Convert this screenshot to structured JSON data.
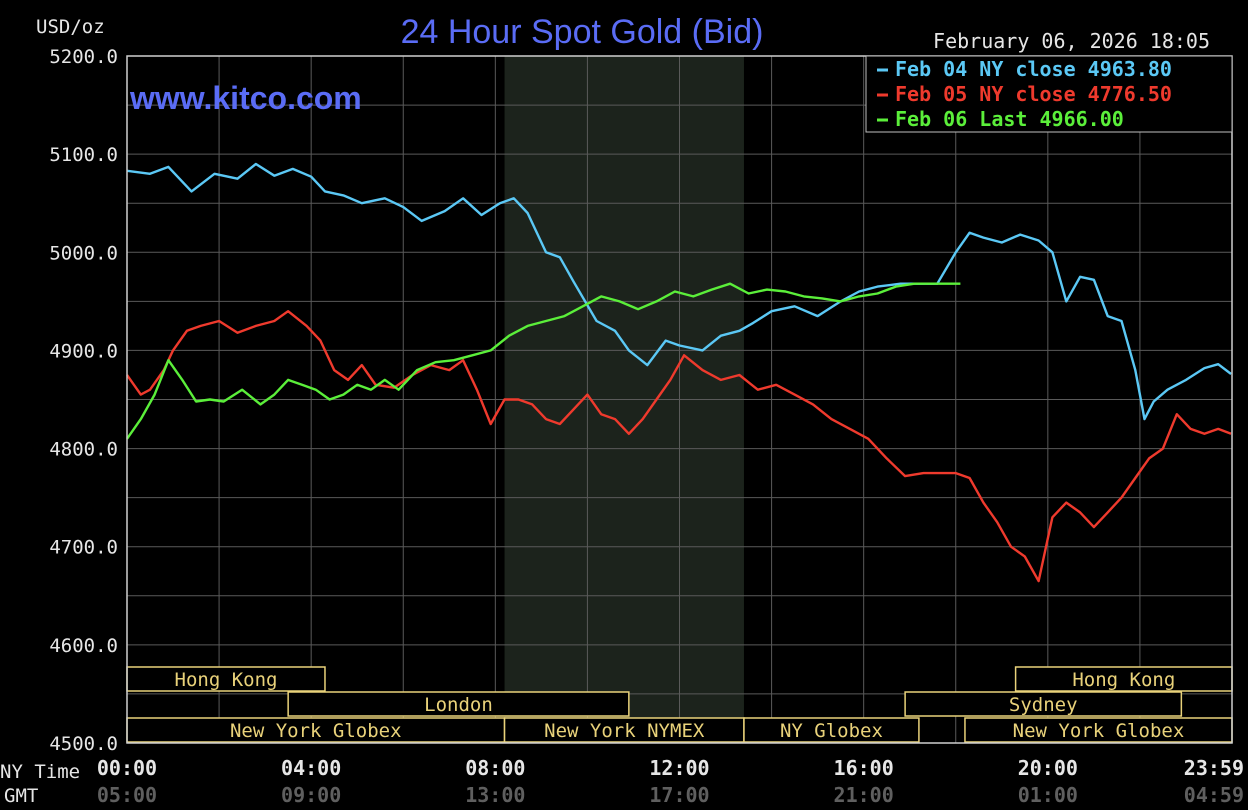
{
  "chart_data": {
    "type": "line",
    "title": "24 Hour Spot Gold (Bid)",
    "watermark": "www.kitco.com",
    "timestamp": "February 06, 2026 18:05",
    "ylabel": "USD/oz",
    "ylim": [
      4500,
      5200
    ],
    "yticks": [
      "5200.0",
      "5100.0",
      "5000.0",
      "4900.0",
      "4800.0",
      "4700.0",
      "4600.0",
      "4500.0"
    ],
    "xlim": [
      0,
      24
    ],
    "x_axis_label_ny": "NY Time",
    "x_axis_label_gmt": "GMT",
    "xticks_ny": [
      "00:00",
      "04:00",
      "08:00",
      "12:00",
      "16:00",
      "20:00",
      "23:59"
    ],
    "xticks_gmt": [
      "05:00",
      "09:00",
      "13:00",
      "17:00",
      "21:00",
      "01:00",
      "04:59"
    ],
    "grid": true,
    "legend_position": "top-right",
    "highlight_band": [
      8.2,
      13.4
    ],
    "series": [
      {
        "name": "Feb 04 NY close 4963.80",
        "color": "#5bc8f5",
        "x": [
          0,
          0.5,
          0.9,
          1.4,
          1.9,
          2.4,
          2.8,
          3.2,
          3.6,
          4.0,
          4.3,
          4.7,
          5.1,
          5.6,
          6.0,
          6.4,
          6.9,
          7.3,
          7.7,
          8.1,
          8.4,
          8.7,
          9.1,
          9.4,
          9.7,
          10.2,
          10.6,
          10.9,
          11.3,
          11.7,
          12.0,
          12.5,
          12.9,
          13.3,
          13.6,
          14.0,
          14.5,
          15.0,
          15.5,
          15.9,
          16.3,
          16.8,
          17.2,
          17.6,
          18.0,
          18.3,
          18.6,
          19.0,
          19.4,
          19.8,
          20.1,
          20.4,
          20.7,
          21.0,
          21.3,
          21.6,
          21.9,
          22.1,
          22.3,
          22.6,
          23.0,
          23.4,
          23.7,
          23.98
        ],
        "y": [
          5083,
          5080,
          5087,
          5062,
          5080,
          5075,
          5090,
          5078,
          5085,
          5077,
          5062,
          5058,
          5050,
          5055,
          5046,
          5032,
          5042,
          5055,
          5038,
          5050,
          5055,
          5040,
          5000,
          4995,
          4970,
          4930,
          4920,
          4900,
          4885,
          4910,
          4905,
          4900,
          4915,
          4920,
          4928,
          4940,
          4945,
          4935,
          4950,
          4960,
          4965,
          4968,
          4968,
          4968,
          5000,
          5020,
          5015,
          5010,
          5018,
          5012,
          5000,
          4950,
          4975,
          4972,
          4935,
          4930,
          4880,
          4830,
          4848,
          4860,
          4870,
          4882,
          4886,
          4876
        ]
      },
      {
        "name": "Feb 05 NY close 4776.50",
        "color": "#ef3a2d",
        "x": [
          0,
          0.3,
          0.5,
          0.8,
          1.0,
          1.3,
          1.6,
          2.0,
          2.4,
          2.8,
          3.2,
          3.5,
          3.9,
          4.2,
          4.5,
          4.8,
          5.1,
          5.4,
          5.8,
          6.2,
          6.6,
          7.0,
          7.3,
          7.6,
          7.9,
          8.2,
          8.5,
          8.8,
          9.1,
          9.4,
          9.7,
          10.0,
          10.3,
          10.6,
          10.9,
          11.2,
          11.5,
          11.8,
          12.1,
          12.5,
          12.9,
          13.3,
          13.7,
          14.1,
          14.5,
          14.9,
          15.3,
          15.7,
          16.1,
          16.5,
          16.9,
          17.3,
          17.7,
          18.0,
          18.3,
          18.6,
          18.9,
          19.2,
          19.5,
          19.8,
          20.1,
          20.4,
          20.7,
          21.0,
          21.3,
          21.6,
          21.9,
          22.2,
          22.5,
          22.8,
          23.1,
          23.4,
          23.7,
          23.98
        ],
        "y": [
          4875,
          4855,
          4860,
          4880,
          4900,
          4920,
          4925,
          4930,
          4918,
          4925,
          4930,
          4940,
          4925,
          4910,
          4880,
          4870,
          4885,
          4865,
          4862,
          4875,
          4885,
          4880,
          4890,
          4860,
          4825,
          4850,
          4850,
          4845,
          4830,
          4825,
          4840,
          4855,
          4835,
          4830,
          4815,
          4830,
          4850,
          4870,
          4895,
          4880,
          4870,
          4875,
          4860,
          4865,
          4855,
          4845,
          4830,
          4820,
          4810,
          4790,
          4772,
          4775,
          4775,
          4775,
          4770,
          4745,
          4725,
          4700,
          4690,
          4665,
          4730,
          4745,
          4735,
          4720,
          4735,
          4750,
          4770,
          4790,
          4800,
          4835,
          4820,
          4815,
          4820,
          4815
        ]
      },
      {
        "name": "Feb 06 Last 4966.00",
        "color": "#5bef3a",
        "x": [
          0,
          0.3,
          0.6,
          0.9,
          1.2,
          1.5,
          1.8,
          2.1,
          2.5,
          2.9,
          3.2,
          3.5,
          3.8,
          4.1,
          4.4,
          4.7,
          5.0,
          5.3,
          5.6,
          5.9,
          6.3,
          6.7,
          7.1,
          7.5,
          7.9,
          8.3,
          8.7,
          9.1,
          9.5,
          9.9,
          10.3,
          10.7,
          11.1,
          11.5,
          11.9,
          12.3,
          12.7,
          13.1,
          13.5,
          13.9,
          14.3,
          14.7,
          15.1,
          15.5,
          15.9,
          16.3,
          16.7,
          17.1,
          17.5,
          17.9,
          18.1
        ],
        "y": [
          4810,
          4830,
          4855,
          4890,
          4870,
          4848,
          4850,
          4848,
          4860,
          4845,
          4855,
          4870,
          4865,
          4860,
          4850,
          4855,
          4865,
          4860,
          4870,
          4860,
          4880,
          4888,
          4890,
          4895,
          4900,
          4915,
          4925,
          4930,
          4935,
          4945,
          4955,
          4950,
          4942,
          4950,
          4960,
          4955,
          4962,
          4968,
          4958,
          4962,
          4960,
          4955,
          4953,
          4950,
          4955,
          4958,
          4965,
          4968,
          4968,
          4968,
          4968
        ]
      }
    ],
    "sessions": [
      {
        "label": "Hong Kong",
        "start": 0,
        "end": 4.3,
        "row": 0
      },
      {
        "label": "Hong Kong",
        "start": 19.3,
        "end": 24,
        "row": 0
      },
      {
        "label": "London",
        "start": 3.5,
        "end": 10.9,
        "row": 1
      },
      {
        "label": "Sydney",
        "start": 16.9,
        "end": 22.9,
        "row": 1
      },
      {
        "label": "New York Globex",
        "start": 0,
        "end": 8.2,
        "row": 2
      },
      {
        "label": "New York NYMEX",
        "start": 8.2,
        "end": 13.4,
        "row": 2
      },
      {
        "label": "NY Globex",
        "start": 13.4,
        "end": 17.2,
        "row": 2
      },
      {
        "label": "New York Globex",
        "start": 18.2,
        "end": 24,
        "row": 2
      }
    ]
  }
}
